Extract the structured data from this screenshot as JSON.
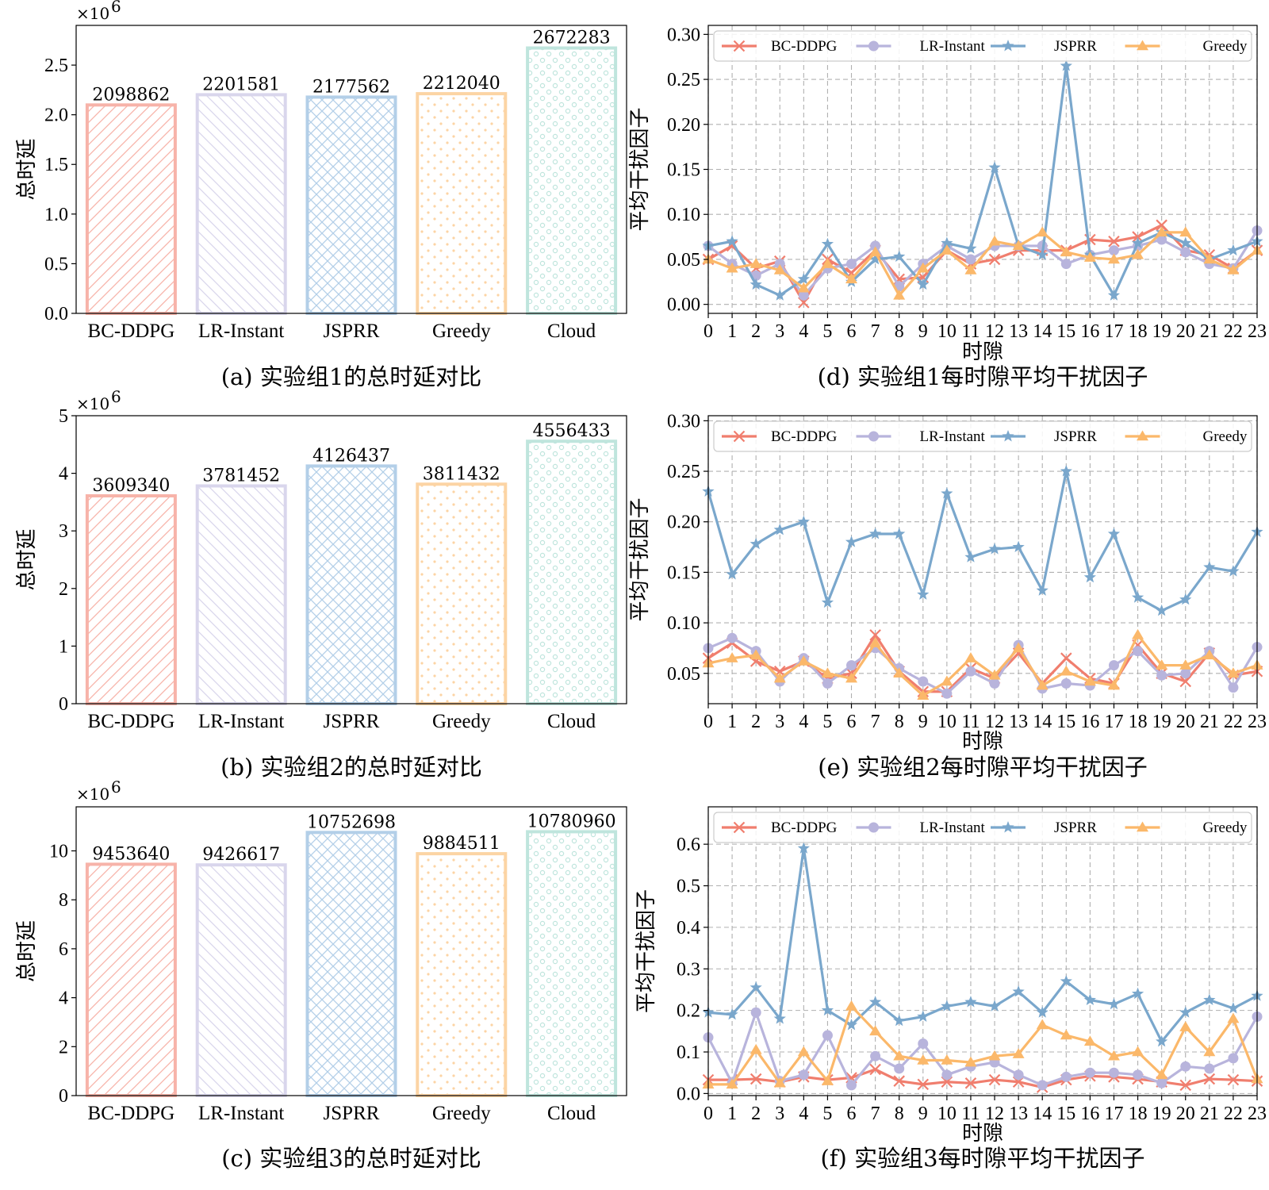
{
  "colors": {
    "BC-DDPG": "#f07e6e",
    "LR-Instant": "#b8b4dc",
    "JSPRR": "#7aa7cc",
    "Greedy": "#fbb86a",
    "Cloud": "#a9ddd4"
  },
  "bar_fill_colors": {
    "BC-DDPG": "#f7b3a9",
    "LR-Instant": "#d9d6ec",
    "JSPRR": "#b3cfe8",
    "Greedy": "#fcd4a4",
    "Cloud": "#bfe5dd"
  },
  "chart_data": [
    {
      "id": "a",
      "type": "bar",
      "caption": "(a) 实验组1的总时延对比",
      "ylabel": "总时延",
      "exponent_label": "×10",
      "exponent_power": "6",
      "categories": [
        "BC-DDPG",
        "LR-Instant",
        "JSPRR",
        "Greedy",
        "Cloud"
      ],
      "values": [
        2098862,
        2201581,
        2177562,
        2212040,
        2672283
      ],
      "value_labels": [
        "2098862",
        "2201581",
        "2177562",
        "2212040",
        "2672283"
      ],
      "ylim": [
        0,
        2.9
      ],
      "yticks": [
        0.0,
        0.5,
        1.0,
        1.5,
        2.0,
        2.5
      ],
      "ytick_labels": [
        "0.0",
        "0.5",
        "1.0",
        "1.5",
        "2.0",
        "2.5"
      ],
      "patterns": [
        "diag-fwd",
        "diag-back",
        "cross",
        "dots",
        "circles"
      ]
    },
    {
      "id": "b",
      "type": "bar",
      "caption": "(b) 实验组2的总时延对比",
      "ylabel": "总时延",
      "exponent_label": "×10",
      "exponent_power": "6",
      "categories": [
        "BC-DDPG",
        "LR-Instant",
        "JSPRR",
        "Greedy",
        "Cloud"
      ],
      "values": [
        3609340,
        3781452,
        4126437,
        3811432,
        4556433
      ],
      "value_labels": [
        "3609340",
        "3781452",
        "4126437",
        "3811432",
        "4556433"
      ],
      "ylim": [
        0,
        5
      ],
      "yticks": [
        0,
        1,
        2,
        3,
        4,
        5
      ],
      "ytick_labels": [
        "0",
        "1",
        "2",
        "3",
        "4",
        "5"
      ],
      "patterns": [
        "diag-fwd",
        "diag-back",
        "cross",
        "dots",
        "circles"
      ]
    },
    {
      "id": "c",
      "type": "bar",
      "caption": "(c) 实验组3的总时延对比",
      "ylabel": "总时延",
      "exponent_label": "×10",
      "exponent_power": "6",
      "categories": [
        "BC-DDPG",
        "LR-Instant",
        "JSPRR",
        "Greedy",
        "Cloud"
      ],
      "values": [
        9453640,
        9426617,
        10752698,
        9884511,
        10780960
      ],
      "value_labels": [
        "9453640",
        "9426617",
        "10752698",
        "9884511",
        "10780960"
      ],
      "ylim": [
        0,
        11.8
      ],
      "yticks": [
        0,
        2,
        4,
        6,
        8,
        10
      ],
      "ytick_labels": [
        "0",
        "2",
        "4",
        "6",
        "8",
        "10"
      ],
      "patterns": [
        "diag-fwd",
        "diag-back",
        "cross",
        "dots",
        "circles"
      ]
    },
    {
      "id": "d",
      "type": "line",
      "caption": "(d) 实验组1每时隙平均干扰因子",
      "xlabel": "时隙",
      "ylabel": "平均干扰因子",
      "x": [
        0,
        1,
        2,
        3,
        4,
        5,
        6,
        7,
        8,
        9,
        10,
        11,
        12,
        13,
        14,
        15,
        16,
        17,
        18,
        19,
        20,
        21,
        22,
        23
      ],
      "xlim": [
        0,
        23
      ],
      "ylim": [
        -0.01,
        0.31
      ],
      "yticks": [
        0.0,
        0.05,
        0.1,
        0.15,
        0.2,
        0.25,
        0.3
      ],
      "ytick_labels": [
        "0.00",
        "0.05",
        "0.10",
        "0.15",
        "0.20",
        "0.25",
        "0.30"
      ],
      "grid": true,
      "legend": "top",
      "series": [
        {
          "name": "BC-DDPG",
          "marker": "x",
          "values": [
            0.05,
            0.065,
            0.04,
            0.048,
            0.002,
            0.05,
            0.035,
            0.06,
            0.028,
            0.03,
            0.06,
            0.045,
            0.05,
            0.06,
            0.06,
            0.06,
            0.072,
            0.07,
            0.075,
            0.088,
            0.06,
            0.055,
            0.04,
            0.06
          ]
        },
        {
          "name": "LR-Instant",
          "marker": "o",
          "values": [
            0.065,
            0.045,
            0.032,
            0.045,
            0.01,
            0.04,
            0.045,
            0.065,
            0.02,
            0.045,
            0.065,
            0.05,
            0.065,
            0.065,
            0.065,
            0.045,
            0.055,
            0.06,
            0.065,
            0.072,
            0.058,
            0.045,
            0.04,
            0.082
          ]
        },
        {
          "name": "JSPRR",
          "marker": "*",
          "values": [
            0.065,
            0.07,
            0.022,
            0.01,
            0.028,
            0.067,
            0.025,
            0.05,
            0.053,
            0.022,
            0.068,
            0.062,
            0.152,
            0.065,
            0.055,
            0.265,
            0.055,
            0.01,
            0.068,
            0.08,
            0.068,
            0.05,
            0.06,
            0.07
          ]
        },
        {
          "name": "Greedy",
          "marker": "^",
          "values": [
            0.05,
            0.04,
            0.045,
            0.038,
            0.018,
            0.045,
            0.028,
            0.058,
            0.01,
            0.04,
            0.06,
            0.038,
            0.07,
            0.065,
            0.08,
            0.058,
            0.052,
            0.05,
            0.055,
            0.08,
            0.08,
            0.05,
            0.038,
            0.06
          ]
        }
      ]
    },
    {
      "id": "e",
      "type": "line",
      "caption": "(e) 实验组2每时隙平均干扰因子",
      "xlabel": "时隙",
      "ylabel": "平均干扰因子",
      "x": [
        0,
        1,
        2,
        3,
        4,
        5,
        6,
        7,
        8,
        9,
        10,
        11,
        12,
        13,
        14,
        15,
        16,
        17,
        18,
        19,
        20,
        21,
        22,
        23
      ],
      "xlim": [
        0,
        23
      ],
      "ylim": [
        0.02,
        0.305
      ],
      "yticks": [
        0.05,
        0.1,
        0.15,
        0.2,
        0.25,
        0.3
      ],
      "ytick_labels": [
        "0.05",
        "0.10",
        "0.15",
        "0.20",
        "0.25",
        "0.30"
      ],
      "grid": true,
      "legend": "top",
      "series": [
        {
          "name": "BC-DDPG",
          "marker": "x",
          "values": [
            0.065,
            0.08,
            0.062,
            0.052,
            0.062,
            0.045,
            0.05,
            0.088,
            0.052,
            0.032,
            0.032,
            0.055,
            0.045,
            0.07,
            0.04,
            0.065,
            0.045,
            0.04,
            0.078,
            0.05,
            0.042,
            0.07,
            0.048,
            0.052
          ]
        },
        {
          "name": "LR-Instant",
          "marker": "o",
          "values": [
            0.075,
            0.085,
            0.072,
            0.042,
            0.065,
            0.04,
            0.058,
            0.075,
            0.055,
            0.042,
            0.03,
            0.052,
            0.04,
            0.078,
            0.035,
            0.04,
            0.038,
            0.058,
            0.072,
            0.048,
            0.05,
            0.072,
            0.036,
            0.076
          ]
        },
        {
          "name": "JSPRR",
          "marker": "*",
          "values": [
            0.23,
            0.148,
            0.178,
            0.192,
            0.2,
            0.12,
            0.18,
            0.188,
            0.188,
            0.128,
            0.228,
            0.165,
            0.173,
            0.175,
            0.132,
            0.25,
            0.145,
            0.188,
            0.125,
            0.112,
            0.123,
            0.155,
            0.151,
            0.19
          ]
        },
        {
          "name": "Greedy",
          "marker": "^",
          "values": [
            0.06,
            0.065,
            0.068,
            0.045,
            0.062,
            0.05,
            0.045,
            0.08,
            0.05,
            0.028,
            0.042,
            0.065,
            0.048,
            0.075,
            0.038,
            0.052,
            0.042,
            0.038,
            0.088,
            0.058,
            0.058,
            0.068,
            0.05,
            0.058
          ]
        }
      ]
    },
    {
      "id": "f",
      "type": "line",
      "caption": "(f) 实验组3每时隙平均干扰因子",
      "xlabel": "时隙",
      "ylabel": "平均干扰因子",
      "x": [
        0,
        1,
        2,
        3,
        4,
        5,
        6,
        7,
        8,
        9,
        10,
        11,
        12,
        13,
        14,
        15,
        16,
        17,
        18,
        19,
        20,
        21,
        22,
        23
      ],
      "xlim": [
        0,
        23
      ],
      "ylim": [
        -0.005,
        0.69
      ],
      "yticks": [
        0.0,
        0.1,
        0.2,
        0.3,
        0.4,
        0.5,
        0.6
      ],
      "ytick_labels": [
        "0.0",
        "0.1",
        "0.2",
        "0.3",
        "0.4",
        "0.5",
        "0.6"
      ],
      "grid": true,
      "legend": "top",
      "series": [
        {
          "name": "BC-DDPG",
          "marker": "x",
          "values": [
            0.033,
            0.033,
            0.035,
            0.028,
            0.04,
            0.033,
            0.038,
            0.058,
            0.03,
            0.022,
            0.028,
            0.025,
            0.033,
            0.028,
            0.015,
            0.033,
            0.042,
            0.04,
            0.035,
            0.028,
            0.02,
            0.035,
            0.033,
            0.03
          ]
        },
        {
          "name": "LR-Instant",
          "marker": "o",
          "values": [
            0.135,
            0.025,
            0.195,
            0.03,
            0.045,
            0.14,
            0.02,
            0.09,
            0.06,
            0.12,
            0.045,
            0.065,
            0.075,
            0.045,
            0.02,
            0.04,
            0.05,
            0.05,
            0.045,
            0.025,
            0.065,
            0.06,
            0.085,
            0.185
          ]
        },
        {
          "name": "JSPRR",
          "marker": "*",
          "values": [
            0.195,
            0.19,
            0.255,
            0.18,
            0.59,
            0.2,
            0.165,
            0.22,
            0.175,
            0.185,
            0.21,
            0.22,
            0.21,
            0.245,
            0.195,
            0.27,
            0.225,
            0.215,
            0.24,
            0.125,
            0.195,
            0.225,
            0.205,
            0.235
          ]
        },
        {
          "name": "Greedy",
          "marker": "^",
          "values": [
            0.022,
            0.022,
            0.105,
            0.025,
            0.1,
            0.03,
            0.21,
            0.15,
            0.09,
            0.08,
            0.08,
            0.075,
            0.09,
            0.095,
            0.165,
            0.14,
            0.125,
            0.09,
            0.1,
            0.045,
            0.16,
            0.1,
            0.18,
            0.035
          ]
        }
      ]
    }
  ]
}
